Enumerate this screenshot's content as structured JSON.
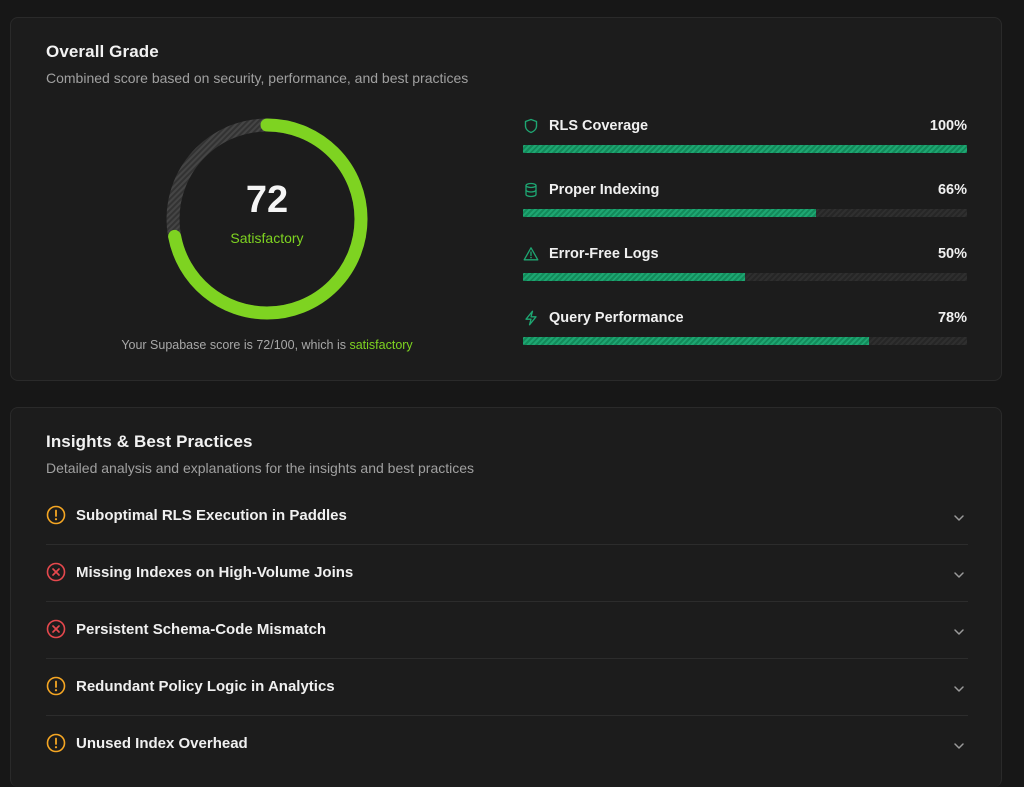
{
  "grade": {
    "title": "Overall Grade",
    "subtitle": "Combined score based on security, performance, and best practices",
    "score": "72",
    "score_value": 72,
    "score_max": 100,
    "rating": "Satisfactory",
    "caption_prefix": "Your Supabase score is 72/100, which is ",
    "caption_highlight": "satisfactory",
    "colors": {
      "accent": "#7ed321",
      "track": "#3a3a3a",
      "bar": "#1ea672"
    }
  },
  "metrics": [
    {
      "name": "RLS Coverage",
      "value": "100%",
      "fraction": 1.0,
      "icon": "shield-icon"
    },
    {
      "name": "Proper Indexing",
      "value": "66%",
      "fraction": 0.66,
      "icon": "database-icon"
    },
    {
      "name": "Error-Free Logs",
      "value": "50%",
      "fraction": 0.5,
      "icon": "warning-triangle-icon"
    },
    {
      "name": "Query Performance",
      "value": "78%",
      "fraction": 0.78,
      "icon": "lightning-icon"
    }
  ],
  "insights": {
    "title": "Insights & Best Practices",
    "subtitle": "Detailed analysis and explanations for the insights and best practices",
    "items": [
      {
        "label": "Suboptimal RLS Execution in Paddles",
        "severity": "warning",
        "icon": "warning-circle-icon",
        "color": "#f5a623"
      },
      {
        "label": "Missing Indexes on High-Volume Joins",
        "severity": "error",
        "icon": "error-circle-icon",
        "color": "#e5484d"
      },
      {
        "label": "Persistent Schema-Code Mismatch",
        "severity": "error",
        "icon": "error-circle-icon",
        "color": "#e5484d"
      },
      {
        "label": "Redundant Policy Logic in Analytics",
        "severity": "warning",
        "icon": "warning-circle-icon",
        "color": "#f5a623"
      },
      {
        "label": "Unused Index Overhead",
        "severity": "warning",
        "icon": "warning-circle-icon",
        "color": "#f5a623"
      }
    ]
  }
}
